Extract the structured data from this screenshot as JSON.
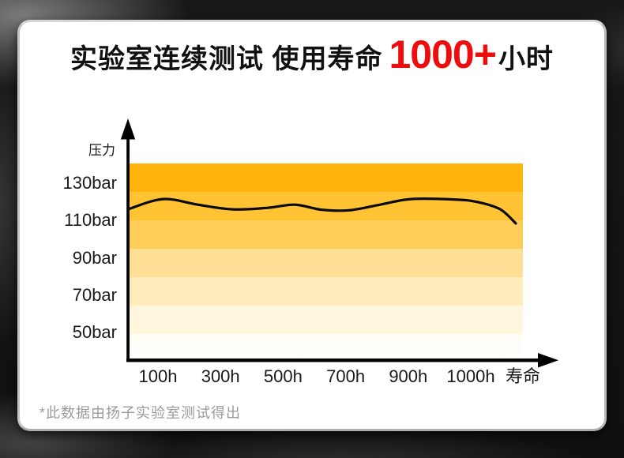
{
  "colors": {
    "background": "#121212",
    "card": "#ffffff",
    "title_text": "#111111",
    "highlight_red": "#ee0c0c",
    "axis_black": "#000000",
    "curve_black": "#0a0a0a",
    "tick_text": "#1a1a1a",
    "footnote_gray": "#9a9a9a"
  },
  "title": {
    "prefix": "实验室连续测试 使用寿命",
    "highlight": "1000+",
    "suffix": "小时"
  },
  "chart_data": {
    "type": "line",
    "ylabel": "压力",
    "y_unit": "bar",
    "y_tick_labels": [
      "130bar",
      "110bar",
      "90bar",
      "70bar",
      "50bar"
    ],
    "y_tick_values": [
      130,
      110,
      90,
      70,
      50
    ],
    "x_tick_labels": [
      "100h",
      "300h",
      "500h",
      "700h",
      "900h",
      "1000h"
    ],
    "x_axis_end_label": "寿命",
    "ylim": [
      50,
      130
    ],
    "grid": "horizontal gradient color bands, no gridlines",
    "legend": "none",
    "band_colors": [
      "#ffb40d",
      "#ffc334",
      "#ffce59",
      "#ffdf95",
      "#ffebbc",
      "#fff6de",
      "#fffdf4"
    ],
    "series": [
      {
        "name": "压力",
        "x_frac": [
          0,
          0.09,
          0.18,
          0.27,
          0.36,
          0.43,
          0.5,
          0.57,
          0.65,
          0.73,
          0.84,
          0.9,
          0.96,
          1.0
        ],
        "pressure_bar": [
          116,
          121.5,
          118.5,
          116,
          116.8,
          118.5,
          115.8,
          115.5,
          118.5,
          121.5,
          121.3,
          120,
          116,
          108.5
        ]
      }
    ],
    "approx_values_at_ticks": {
      "100h": 121,
      "300h": 116,
      "500h": 118,
      "700h": 115.5,
      "900h": 121.5,
      "1000h": 121,
      "寿命": 108.5
    }
  },
  "footnote": {
    "text": "*此数据由扬子实验室测试得出"
  }
}
